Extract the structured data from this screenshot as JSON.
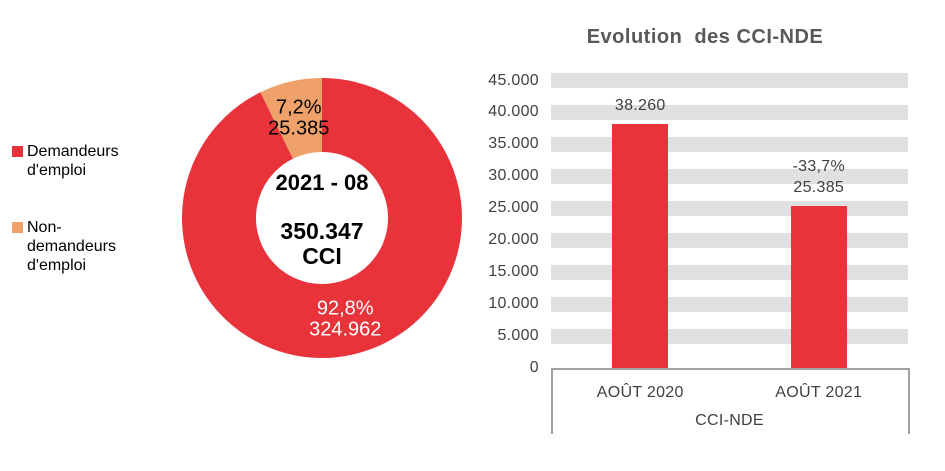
{
  "colors": {
    "red": "#E9333A",
    "orange": "#F0A169",
    "grid_band": "#E0E0E0",
    "axis_line": "#A0A0A0",
    "title_text": "#595959",
    "label_text": "#404040",
    "legend_text": "#000000",
    "donut_label_on_red": "#FFFFFF",
    "donut_label_on_orange": "#000000"
  },
  "legend": {
    "items": [
      {
        "label": "Demandeurs d'emploi",
        "color": "#E9333A"
      },
      {
        "label": "Non-demandeurs d'emploi",
        "color": "#F0A169"
      }
    ]
  },
  "chart_data": [
    {
      "type": "pie",
      "subtype": "donut",
      "period_label": "2021 - 08",
      "total_label": "350.347",
      "total_unit": "CCI",
      "total_value": 350347,
      "start_angle_deg": 0,
      "direction": "clockwise",
      "slices": [
        {
          "name": "Demandeurs d'emploi",
          "value": 324962,
          "pct_label": "92,8%",
          "value_label": "324.962",
          "color": "#E9333A",
          "label_color": "#FFFFFF"
        },
        {
          "name": "Non-demandeurs d'emploi",
          "value": 25385,
          "pct_label": "7,2%",
          "value_label": "25.385",
          "color": "#F0A169",
          "label_color": "#000000"
        }
      ]
    },
    {
      "type": "bar",
      "title": "Evolution  des CCI-NDE",
      "categories": [
        "AOÛT 2020",
        "AOÛT 2021"
      ],
      "values": [
        38260,
        25385
      ],
      "bar_labels": [
        [
          "38.260"
        ],
        [
          "-33,7%",
          "25.385"
        ]
      ],
      "xlabel": "CCI-NDE",
      "ylim": [
        0,
        45000
      ],
      "ytick_step": 5000,
      "ytick_labels": [
        "0",
        "5.000",
        "10.000",
        "15.000",
        "20.000",
        "25.000",
        "30.000",
        "35.000",
        "40.000",
        "45.000"
      ],
      "bar_color": "#E9333A",
      "gridline_style": "thick-gray-bands",
      "legend_position": "none"
    }
  ]
}
